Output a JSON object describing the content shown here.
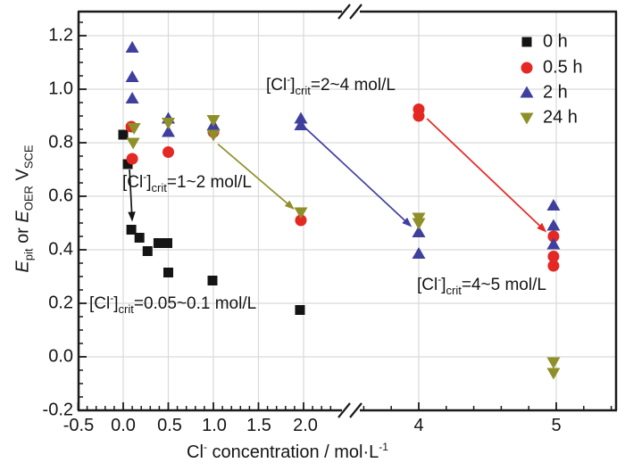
{
  "chart_data": {
    "type": "scatter",
    "title": "",
    "xlabel": "Cl- concentration / mol·L-1",
    "ylabel": "Epit or EOER VSCE",
    "grid": true,
    "legend_position": "top-right-inside",
    "x_axis_break": {
      "between": [
        2.0,
        4.0
      ]
    },
    "xlim_left_segment": [
      -0.5,
      2.45
    ],
    "xlim_right_segment": [
      3.55,
      5.45
    ],
    "ylim": [
      -0.2,
      1.29
    ],
    "x_tick_labels": [
      "-0.5",
      "0.0",
      "0.5",
      "1.0",
      "1.5",
      "2.0",
      "4",
      "5"
    ],
    "y_tick_labels": [
      "1.2",
      "1.0",
      "0.8",
      "0.6",
      "0.4",
      "0.2",
      "0.0",
      "-0.2"
    ],
    "grid_x_values": [
      0.0,
      0.5,
      1.0,
      1.5,
      2.0,
      4.0,
      5.0
    ],
    "grid_y_values": [
      0.0,
      0.2,
      0.4,
      0.6,
      0.8,
      1.0,
      1.2
    ],
    "colors": {
      "grid": "#d9d9d9",
      "frame": "#1a1a1a",
      "background": "#ffffff"
    },
    "series": [
      {
        "name": "0 h",
        "marker": "square",
        "color": "#141414",
        "points": [
          [
            0.0,
            0.83
          ],
          [
            0.05,
            0.72
          ],
          [
            0.09,
            0.475
          ],
          [
            0.18,
            0.445
          ],
          [
            0.27,
            0.395
          ],
          [
            0.39,
            0.425
          ],
          [
            0.49,
            0.425
          ],
          [
            0.5,
            0.315
          ],
          [
            0.99,
            0.285
          ],
          [
            1.96,
            0.175
          ]
        ]
      },
      {
        "name": "0.5 h",
        "marker": "circle",
        "color": "#e42823",
        "points": [
          [
            0.09,
            0.86
          ],
          [
            0.1,
            0.74
          ],
          [
            0.5,
            0.765
          ],
          [
            1.0,
            0.84
          ],
          [
            1.97,
            0.51
          ],
          [
            4.0,
            0.925
          ],
          [
            4.0,
            0.9
          ],
          [
            4.98,
            0.45
          ],
          [
            4.98,
            0.375
          ],
          [
            4.98,
            0.34
          ]
        ]
      },
      {
        "name": "2 h",
        "marker": "triangle-up",
        "color": "#3f3f9e",
        "points": [
          [
            0.1,
            1.155
          ],
          [
            0.1,
            1.045
          ],
          [
            0.1,
            0.965
          ],
          [
            0.5,
            0.89
          ],
          [
            0.5,
            0.84
          ],
          [
            1.0,
            0.865
          ],
          [
            1.97,
            0.89
          ],
          [
            1.97,
            0.865
          ],
          [
            4.0,
            0.465
          ],
          [
            4.0,
            0.385
          ],
          [
            4.98,
            0.565
          ],
          [
            4.98,
            0.49
          ],
          [
            4.98,
            0.42
          ]
        ]
      },
      {
        "name": "24 h",
        "marker": "triangle-down",
        "color": "#8f8f2a",
        "points": [
          [
            0.12,
            0.855
          ],
          [
            0.11,
            0.8
          ],
          [
            0.5,
            0.875
          ],
          [
            1.0,
            0.885
          ],
          [
            1.0,
            0.83
          ],
          [
            1.97,
            0.54
          ],
          [
            4.0,
            0.52
          ],
          [
            4.0,
            0.5
          ],
          [
            4.98,
            -0.02
          ],
          [
            4.98,
            -0.06
          ]
        ]
      }
    ],
    "arrows": [
      {
        "color": "#141414",
        "from": [
          0.07,
          0.7
        ],
        "to": [
          0.1,
          0.505
        ]
      },
      {
        "color": "#8f8f2a",
        "from": [
          1.05,
          0.795
        ],
        "to": [
          1.9,
          0.55
        ]
      },
      {
        "color": "#3f3f9e",
        "from": [
          2.02,
          0.855
        ],
        "to": [
          3.95,
          0.485
        ]
      },
      {
        "color": "#e42823",
        "from": [
          4.06,
          0.89
        ],
        "to": [
          4.93,
          0.465
        ]
      }
    ],
    "annotations": [
      {
        "pre": "[Cl",
        "sup": "-",
        "mid": "]",
        "sub": "crit",
        "post": "=0.05~0.1 mol/L"
      },
      {
        "pre": "[Cl",
        "sup": "-",
        "mid": "]",
        "sub": "crit",
        "post": "=1~2 mol/L"
      },
      {
        "pre": "[Cl",
        "sup": "-",
        "mid": "]",
        "sub": "crit",
        "post": "=2~4 mol/L"
      },
      {
        "pre": "[Cl",
        "sup": "-",
        "mid": "]",
        "sub": "crit",
        "post": "=4~5 mol/L"
      }
    ],
    "xlabel_parts": {
      "t1": "Cl",
      "sup1": "-",
      "t2": " concentration / mol·L",
      "sup2": "-1"
    },
    "ylabel_parts": {
      "e1": "E",
      "e1sub": "pit",
      "or": " or ",
      "e2": "E",
      "e2sub": "OER",
      "v": " V",
      "vsub": "SCE"
    }
  }
}
